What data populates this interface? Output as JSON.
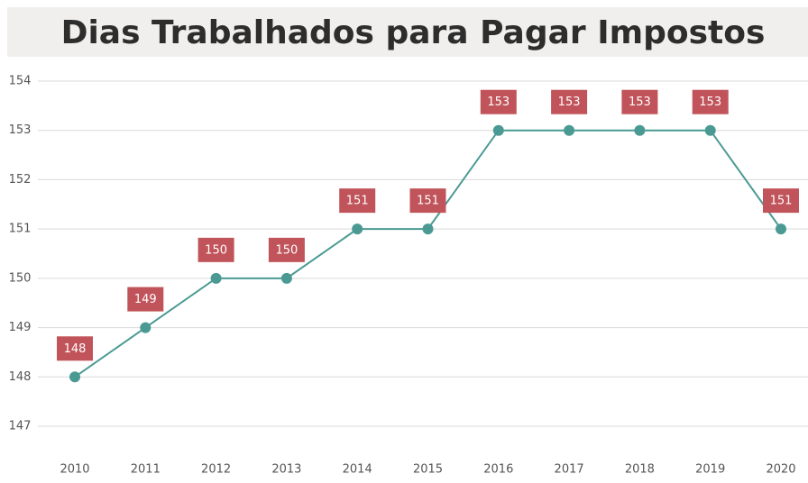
{
  "chart_data": {
    "type": "line",
    "title": "Dias Trabalhados para Pagar Impostos",
    "categories": [
      "2010",
      "2011",
      "2012",
      "2013",
      "2014",
      "2015",
      "2016",
      "2017",
      "2018",
      "2019",
      "2020"
    ],
    "values": [
      148,
      149,
      150,
      150,
      151,
      151,
      153,
      153,
      153,
      153,
      151
    ],
    "color": "#4a9a93",
    "label_color": "#c0545a",
    "ylim": [
      147,
      154
    ],
    "yticks": [
      147,
      148,
      149,
      150,
      151,
      152,
      153,
      154
    ],
    "grid": true
  }
}
